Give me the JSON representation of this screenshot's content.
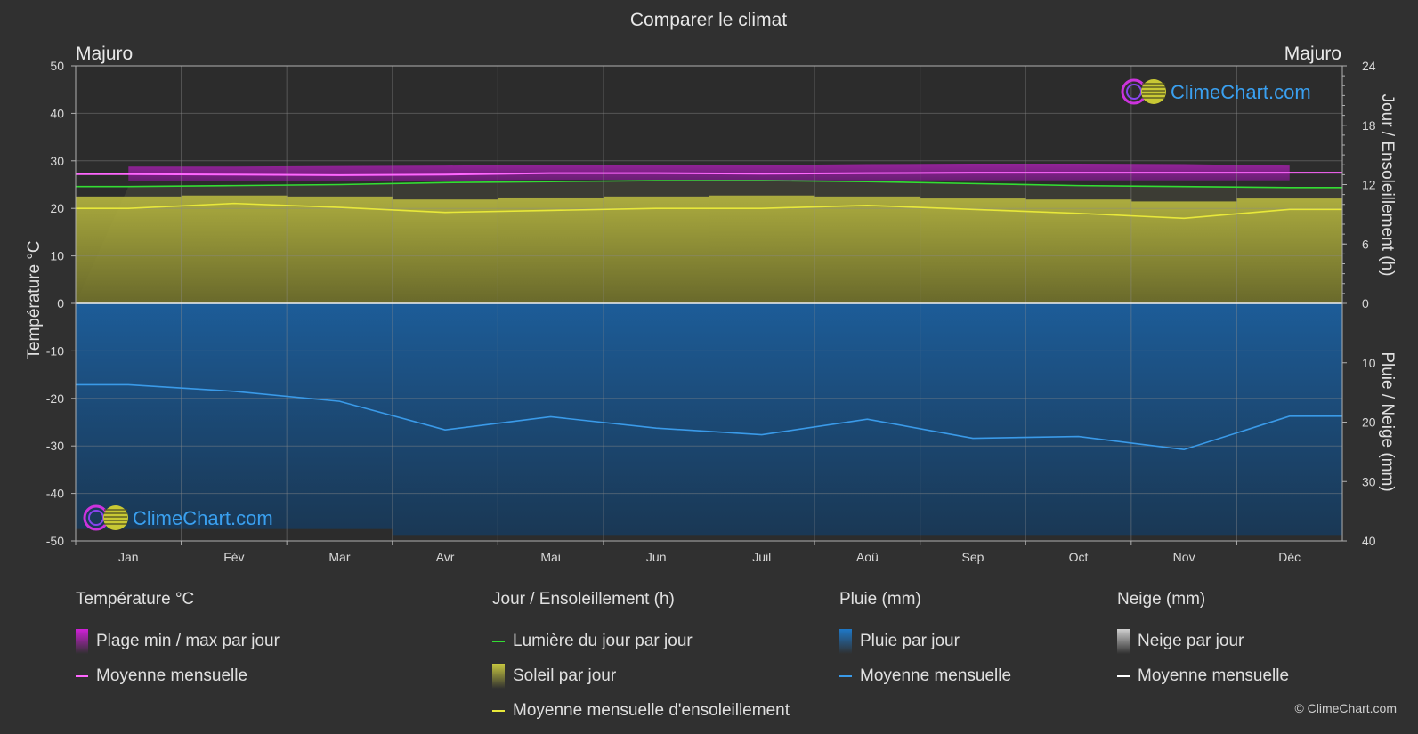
{
  "title": "Comparer le climat",
  "location_left": "Majuro",
  "location_right": "Majuro",
  "brand": "ClimeChart.com",
  "copyright": "© ClimeChart.com",
  "axes": {
    "left_label": "Température °C",
    "right_top_label": "Jour / Ensoleillement (h)",
    "right_bottom_label": "Pluie / Neige (mm)",
    "left_ticks": [
      "50",
      "40",
      "30",
      "20",
      "10",
      "0",
      "-10",
      "-20",
      "-30",
      "-40",
      "-50"
    ],
    "right_top_ticks": [
      "24",
      "18",
      "12",
      "6",
      "0"
    ],
    "right_bottom_ticks": [
      "10",
      "20",
      "30",
      "40"
    ]
  },
  "chart_data": {
    "type": "area",
    "categories": [
      "Jan",
      "Fév",
      "Mar",
      "Avr",
      "Mai",
      "Jun",
      "Juil",
      "Aoû",
      "Sep",
      "Oct",
      "Nov",
      "Déc"
    ],
    "temp_range_c": [
      -50,
      50
    ],
    "sun_range_h": [
      0,
      24
    ],
    "rain_range_mm": [
      0,
      40
    ],
    "series": [
      {
        "name": "Plage min / max par jour",
        "unit": "°C",
        "min": [
          25.8,
          25.8,
          25.7,
          25.8,
          26.0,
          26.0,
          25.9,
          25.9,
          25.9,
          25.9,
          25.9,
          25.9
        ],
        "max": [
          28.8,
          28.8,
          28.9,
          29.0,
          29.2,
          29.2,
          29.1,
          29.3,
          29.4,
          29.4,
          29.3,
          29.0
        ]
      },
      {
        "name": "Moyenne mensuelle",
        "unit": "°C",
        "values": [
          27.2,
          27.1,
          27.0,
          27.1,
          27.4,
          27.4,
          27.3,
          27.4,
          27.5,
          27.5,
          27.5,
          27.5
        ]
      },
      {
        "name": "Lumière du jour par jour",
        "unit": "h",
        "values": [
          11.8,
          11.9,
          12.0,
          12.2,
          12.3,
          12.4,
          12.4,
          12.3,
          12.1,
          11.9,
          11.8,
          11.7
        ]
      },
      {
        "name": "Soleil par jour",
        "unit": "h",
        "values": [
          10.8,
          10.9,
          10.8,
          10.5,
          10.7,
          10.8,
          10.9,
          10.8,
          10.6,
          10.5,
          10.3,
          10.6
        ]
      },
      {
        "name": "Moyenne mensuelle d'ensoleillement",
        "unit": "h",
        "values": [
          9.6,
          10.1,
          9.7,
          9.2,
          9.4,
          9.6,
          9.6,
          9.9,
          9.5,
          9.1,
          8.6,
          9.5
        ]
      },
      {
        "name": "Pluie par jour",
        "unit": "mm",
        "values": [
          38,
          38,
          38,
          39,
          39,
          39,
          39,
          39,
          39,
          39,
          39,
          39
        ]
      },
      {
        "name": "Moyenne mensuelle",
        "unit": "mm",
        "values": [
          13.7,
          14.8,
          16.5,
          21.3,
          19.1,
          21.0,
          22.1,
          19.5,
          22.7,
          22.4,
          24.6,
          19.0
        ]
      }
    ],
    "legend": [
      {
        "header": "Température °C",
        "items": [
          {
            "label": "Plage min / max par jour",
            "kind": "box",
            "color": "#d020d8"
          },
          {
            "label": "Moyenne mensuelle",
            "kind": "line",
            "color": "#ff66ff"
          }
        ]
      },
      {
        "header": "Jour / Ensoleillement (h)",
        "items": [
          {
            "label": "Lumière du jour par jour",
            "kind": "line",
            "color": "#33dd33"
          },
          {
            "label": "Soleil par jour",
            "kind": "box",
            "color": "#c8c840"
          },
          {
            "label": "Moyenne mensuelle d'ensoleillement",
            "kind": "line",
            "color": "#e8e83a"
          }
        ]
      },
      {
        "header": "Pluie (mm)",
        "items": [
          {
            "label": "Pluie par jour",
            "kind": "box",
            "color": "#1e78c8"
          },
          {
            "label": "Moyenne mensuelle",
            "kind": "line",
            "color": "#3a9ae8"
          }
        ]
      },
      {
        "header": "Neige (mm)",
        "items": [
          {
            "label": "Neige par jour",
            "kind": "box",
            "color": "#d0d0d0"
          },
          {
            "label": "Moyenne mensuelle",
            "kind": "line",
            "color": "#ffffff"
          }
        ]
      }
    ]
  }
}
